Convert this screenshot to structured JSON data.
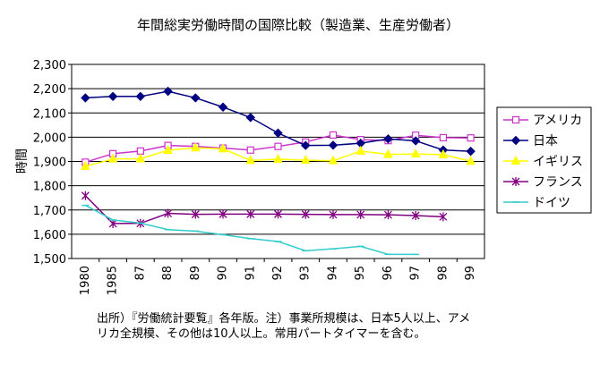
{
  "chart_data": {
    "type": "line",
    "title": "年間総実労働時間の国際比較（製造業、生産労働者）",
    "ylabel": "時間",
    "xlabel": "",
    "ylim": [
      1500,
      2300
    ],
    "yticks": [
      "1,500",
      "1,600",
      "1,700",
      "1,800",
      "1,900",
      "2,000",
      "2,100",
      "2,200",
      "2,300"
    ],
    "categories": [
      "1980",
      "1985",
      "87",
      "88",
      "89",
      "90",
      "91",
      "92",
      "93",
      "94",
      "95",
      "96",
      "97",
      "98",
      "99"
    ],
    "grid": true,
    "legend_position": "right",
    "series": [
      {
        "name": "アメリカ",
        "color": "#cc33cc",
        "marker": "square",
        "values": [
          1897,
          1932,
          1943,
          1966,
          1962,
          1955,
          1947,
          1962,
          1980,
          2009,
          1990,
          1986,
          2008,
          1998,
          1997
        ]
      },
      {
        "name": "日本",
        "color": "#000080",
        "marker": "diamond",
        "values": [
          2162,
          2168,
          2168,
          2189,
          2162,
          2124,
          2081,
          2017,
          1966,
          1967,
          1975,
          1993,
          1985,
          1947,
          1942
        ]
      },
      {
        "name": "イギリス",
        "color": "#ffff00",
        "marker": "triangle",
        "values": [
          1880,
          1910,
          1911,
          1946,
          1956,
          1952,
          1904,
          1909,
          1905,
          1903,
          1943,
          1929,
          1931,
          1928,
          1901
        ]
      },
      {
        "name": "フランス",
        "color": "#800080",
        "marker": "asterisk",
        "values": [
          1759,
          1644,
          1645,
          1686,
          1682,
          1683,
          1683,
          1683,
          1682,
          1681,
          1681,
          1680,
          1677,
          1672,
          null
        ]
      },
      {
        "name": "ドイツ",
        "color": "#33cccc",
        "marker": "line",
        "values": [
          1719,
          1659,
          1646,
          1619,
          1613,
          1598,
          1582,
          1570,
          1532,
          1540,
          1550,
          1517,
          1517,
          null,
          null
        ]
      }
    ]
  },
  "note": "出所）『労働統計要覧』各年版。注）事業所規模は、日本5人以上、アメリカ全規模、その他は10人以上。常用パートタイマーを含む。"
}
